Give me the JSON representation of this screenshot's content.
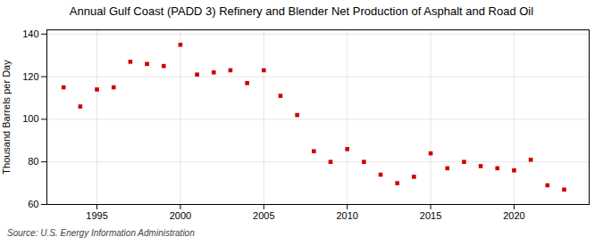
{
  "chart_data": {
    "type": "scatter",
    "title": "Annual Gulf Coast (PADD 3) Refinery and Blender Net Production of Asphalt and Road Oil",
    "ylabel": "Thousand Barrels per Day",
    "source": "Source: U.S. Energy Information Administration",
    "x": [
      1993,
      1994,
      1995,
      1996,
      1997,
      1998,
      1999,
      2000,
      2001,
      2002,
      2003,
      2004,
      2005,
      2006,
      2007,
      2008,
      2009,
      2010,
      2011,
      2012,
      2013,
      2014,
      2015,
      2016,
      2017,
      2018,
      2019,
      2020,
      2021,
      2022,
      2023
    ],
    "values": [
      115,
      106,
      114,
      115,
      127,
      126,
      125,
      135,
      121,
      122,
      123,
      117,
      123,
      111,
      102,
      85,
      80,
      86,
      80,
      74,
      70,
      73,
      84,
      77,
      80,
      78,
      77,
      76,
      81,
      69,
      67
    ],
    "color": "#cc0000",
    "marker": "square",
    "xlim": [
      1992,
      2024.5
    ],
    "xticks": [
      1995,
      2000,
      2005,
      2010,
      2015,
      2020
    ],
    "ylim": [
      60,
      142
    ],
    "yticks": [
      60,
      80,
      100,
      120,
      140
    ],
    "grid": true
  }
}
